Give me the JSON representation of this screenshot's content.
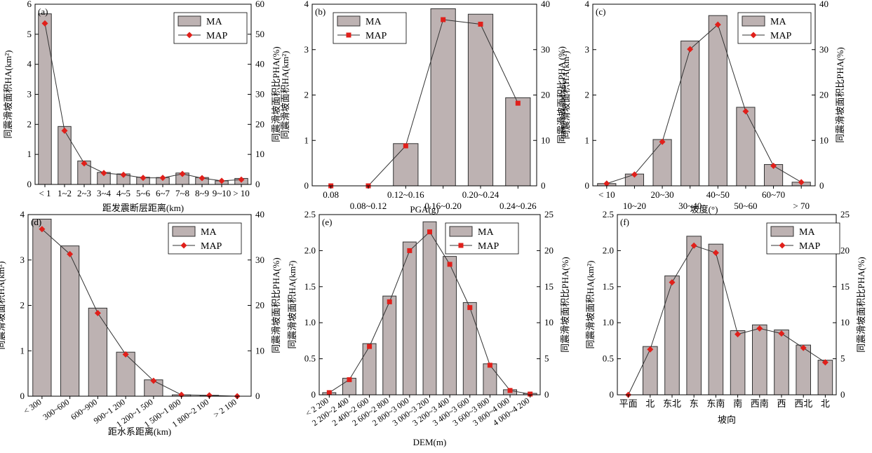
{
  "colors": {
    "bar_fill": "#bdb2b2",
    "bar_stroke": "#333333",
    "line": "#333333",
    "diamond": "#e0201b",
    "square": "#e0201b"
  },
  "legend": {
    "ma": "MA",
    "map": "MAP"
  },
  "chart_data": [
    {
      "id": "a",
      "panel_label": "(a)",
      "type": "bar",
      "xlabel": "距发震断层距离(km)",
      "ylabel_left": "同震滑坡面积HA(km²)",
      "ylabel_right": "同震滑坡面积比PHA(%)",
      "y_left_range": [
        0,
        6
      ],
      "y_left_ticks": [
        "0",
        "1",
        "2",
        "3",
        "4",
        "5",
        "6"
      ],
      "y_right_range": [
        0,
        60
      ],
      "y_right_ticks": [
        "0",
        "10",
        "20",
        "30",
        "40",
        "50",
        "60"
      ],
      "categories": [
        "< 1",
        "1~2",
        "2~3",
        "3~4",
        "4~5",
        "5~6",
        "6~7",
        "7~8",
        "8~9",
        "9~10",
        "> 10"
      ],
      "label_rows": [
        0,
        0,
        0,
        0,
        0,
        0,
        0,
        0,
        0,
        0,
        0
      ],
      "marker": "diamond",
      "legend_position": "top-right",
      "series": [
        {
          "name": "MA",
          "kind": "bar",
          "values": [
            5.68,
            1.93,
            0.78,
            0.4,
            0.35,
            0.24,
            0.23,
            0.38,
            0.23,
            0.12,
            0.2
          ]
        },
        {
          "name": "MAP",
          "kind": "line",
          "values": [
            53.6,
            17.9,
            7.0,
            3.8,
            3.2,
            2.2,
            2.2,
            3.5,
            2.1,
            1.2,
            1.6
          ]
        }
      ]
    },
    {
      "id": "b",
      "panel_label": "(b)",
      "type": "bar",
      "xlabel": "PGA(g)",
      "ylabel_left": "同震滑坡面积HA(km²)",
      "ylabel_right": "同震滑坡面积比PHA (%)",
      "y_left_range": [
        0,
        4
      ],
      "y_left_ticks": [
        "0",
        "1",
        "2",
        "3",
        "4"
      ],
      "y_right_range": [
        0,
        40
      ],
      "y_right_ticks": [
        "0",
        "10",
        "20",
        "30",
        "40"
      ],
      "categories": [
        "0.08",
        "0.08~0.12",
        "0.12~0.16",
        "0.16~0.20",
        "0.20~0.24",
        "0.24~0.26"
      ],
      "label_rows": [
        0,
        1,
        0,
        1,
        0,
        1
      ],
      "marker": "square",
      "legend_position": "top-left",
      "series": [
        {
          "name": "MA",
          "kind": "bar",
          "values": [
            0,
            0,
            0.93,
            3.9,
            3.78,
            1.94
          ]
        },
        {
          "name": "MAP",
          "kind": "line",
          "values": [
            0,
            0,
            8.8,
            36.6,
            35.6,
            18.2
          ]
        }
      ]
    },
    {
      "id": "c",
      "panel_label": "(c)",
      "type": "bar",
      "xlabel": "坡度(°)",
      "ylabel_left": "同震滑坡面积HA(km²)",
      "ylabel_right": "同震滑坡面积比PHA(%)",
      "y_left_range": [
        0,
        4
      ],
      "y_left_ticks": [
        "0",
        "1",
        "2",
        "3",
        "4"
      ],
      "y_right_range": [
        0,
        40
      ],
      "y_right_ticks": [
        "0",
        "10",
        "20",
        "30",
        "40"
      ],
      "categories": [
        "< 10",
        "10~20",
        "20~30",
        "30~40",
        "40~50",
        "50~60",
        "60~70",
        "> 70"
      ],
      "label_rows": [
        0,
        1,
        0,
        1,
        0,
        1,
        0,
        1
      ],
      "marker": "diamond",
      "legend_position": "top-right",
      "series": [
        {
          "name": "MA",
          "kind": "bar",
          "values": [
            0.05,
            0.26,
            1.02,
            3.19,
            3.75,
            1.73,
            0.47,
            0.08
          ]
        },
        {
          "name": "MAP",
          "kind": "line",
          "values": [
            0.5,
            2.5,
            9.7,
            30.1,
            35.5,
            16.4,
            4.4,
            0.8
          ]
        }
      ]
    },
    {
      "id": "d",
      "panel_label": "(d)",
      "type": "bar",
      "xlabel": "距水系距离(km)",
      "ylabel_left": "同震滑坡面积HA(km²)",
      "ylabel_right": "同震滑坡面积比PHA(%)",
      "y_left_range": [
        0,
        4
      ],
      "y_left_ticks": [
        "0",
        "1",
        "2",
        "3",
        "4"
      ],
      "y_right_range": [
        0,
        40
      ],
      "y_right_ticks": [
        "0",
        "10",
        "20",
        "30",
        "40"
      ],
      "categories": [
        "< 300",
        "300~600",
        "600~900",
        "900~1 200",
        "1 200~1 500",
        "1 500~1 800",
        "1 800~2 100",
        "> 2 100"
      ],
      "label_rows": [
        0,
        0,
        0,
        0,
        0,
        0,
        0,
        0
      ],
      "rotate_labels": true,
      "marker": "diamond",
      "legend_position": "top-right",
      "series": [
        {
          "name": "MA",
          "kind": "bar",
          "values": [
            3.9,
            3.31,
            1.94,
            0.97,
            0.36,
            0.03,
            0.02,
            0
          ]
        },
        {
          "name": "MAP",
          "kind": "line",
          "values": [
            36.8,
            31.3,
            18.3,
            9.2,
            3.4,
            0.3,
            0.2,
            0
          ]
        }
      ]
    },
    {
      "id": "e",
      "panel_label": "(e)",
      "type": "bar",
      "xlabel": "DEM(m)",
      "ylabel_left": "同震滑坡面积HA(km²)",
      "ylabel_right": "同震滑坡面积比PHA(%)",
      "y_left_range": [
        0,
        2.5
      ],
      "y_left_ticks": [
        "0",
        "0.5",
        "1.0",
        "1.5",
        "2.0",
        "2.5"
      ],
      "y_right_range": [
        0,
        25
      ],
      "y_right_ticks": [
        "0",
        "5",
        "10",
        "15",
        "20",
        "25"
      ],
      "categories": [
        "< 2 200",
        "2 200~2 400",
        "2 400~2 600",
        "2 600~2 800",
        "2 800~3 000",
        "3 000~3 200",
        "3 200~3 400",
        "3 400~3 600",
        "3 600~3 800",
        "3 800~4 000",
        "4 000~4 200"
      ],
      "label_rows": [
        0,
        0,
        0,
        0,
        0,
        0,
        0,
        0,
        0,
        0,
        0
      ],
      "rotate_labels": true,
      "marker": "square",
      "legend_position": "top-right",
      "series": [
        {
          "name": "MA",
          "kind": "bar",
          "values": [
            0.03,
            0.23,
            0.71,
            1.37,
            2.12,
            2.4,
            1.92,
            1.28,
            0.43,
            0.07,
            0.02
          ]
        },
        {
          "name": "MAP",
          "kind": "line",
          "values": [
            0.3,
            2.1,
            6.7,
            12.9,
            20.0,
            22.6,
            18.1,
            12.1,
            4.1,
            0.6,
            0.1
          ]
        }
      ]
    },
    {
      "id": "f",
      "panel_label": "(f)",
      "type": "bar",
      "xlabel": "坡向",
      "ylabel_left": "同震滑坡面积HA(km²)",
      "ylabel_right": "同震滑坡面积比PHA(%)",
      "y_left_range": [
        0,
        2.5
      ],
      "y_left_ticks": [
        "0",
        "0.5",
        "1.0",
        "1.5",
        "2.0",
        "2.5"
      ],
      "y_right_range": [
        0,
        25
      ],
      "y_right_ticks": [
        "0",
        "5",
        "10",
        "15",
        "20",
        "25"
      ],
      "categories": [
        "平面",
        "北",
        "东北",
        "东",
        "东南",
        "南",
        "西南",
        "西",
        "西北",
        "北"
      ],
      "label_rows": [
        0,
        0,
        0,
        0,
        0,
        0,
        0,
        0,
        0,
        0
      ],
      "marker": "diamond",
      "legend_position": "top-right",
      "series": [
        {
          "name": "MA",
          "kind": "bar",
          "values": [
            0,
            0.67,
            1.65,
            2.2,
            2.09,
            0.89,
            0.97,
            0.9,
            0.69,
            0.48
          ]
        },
        {
          "name": "MAP",
          "kind": "line",
          "values": [
            0,
            6.3,
            15.6,
            20.7,
            19.7,
            8.4,
            9.2,
            8.5,
            6.5,
            4.5
          ]
        }
      ]
    }
  ]
}
